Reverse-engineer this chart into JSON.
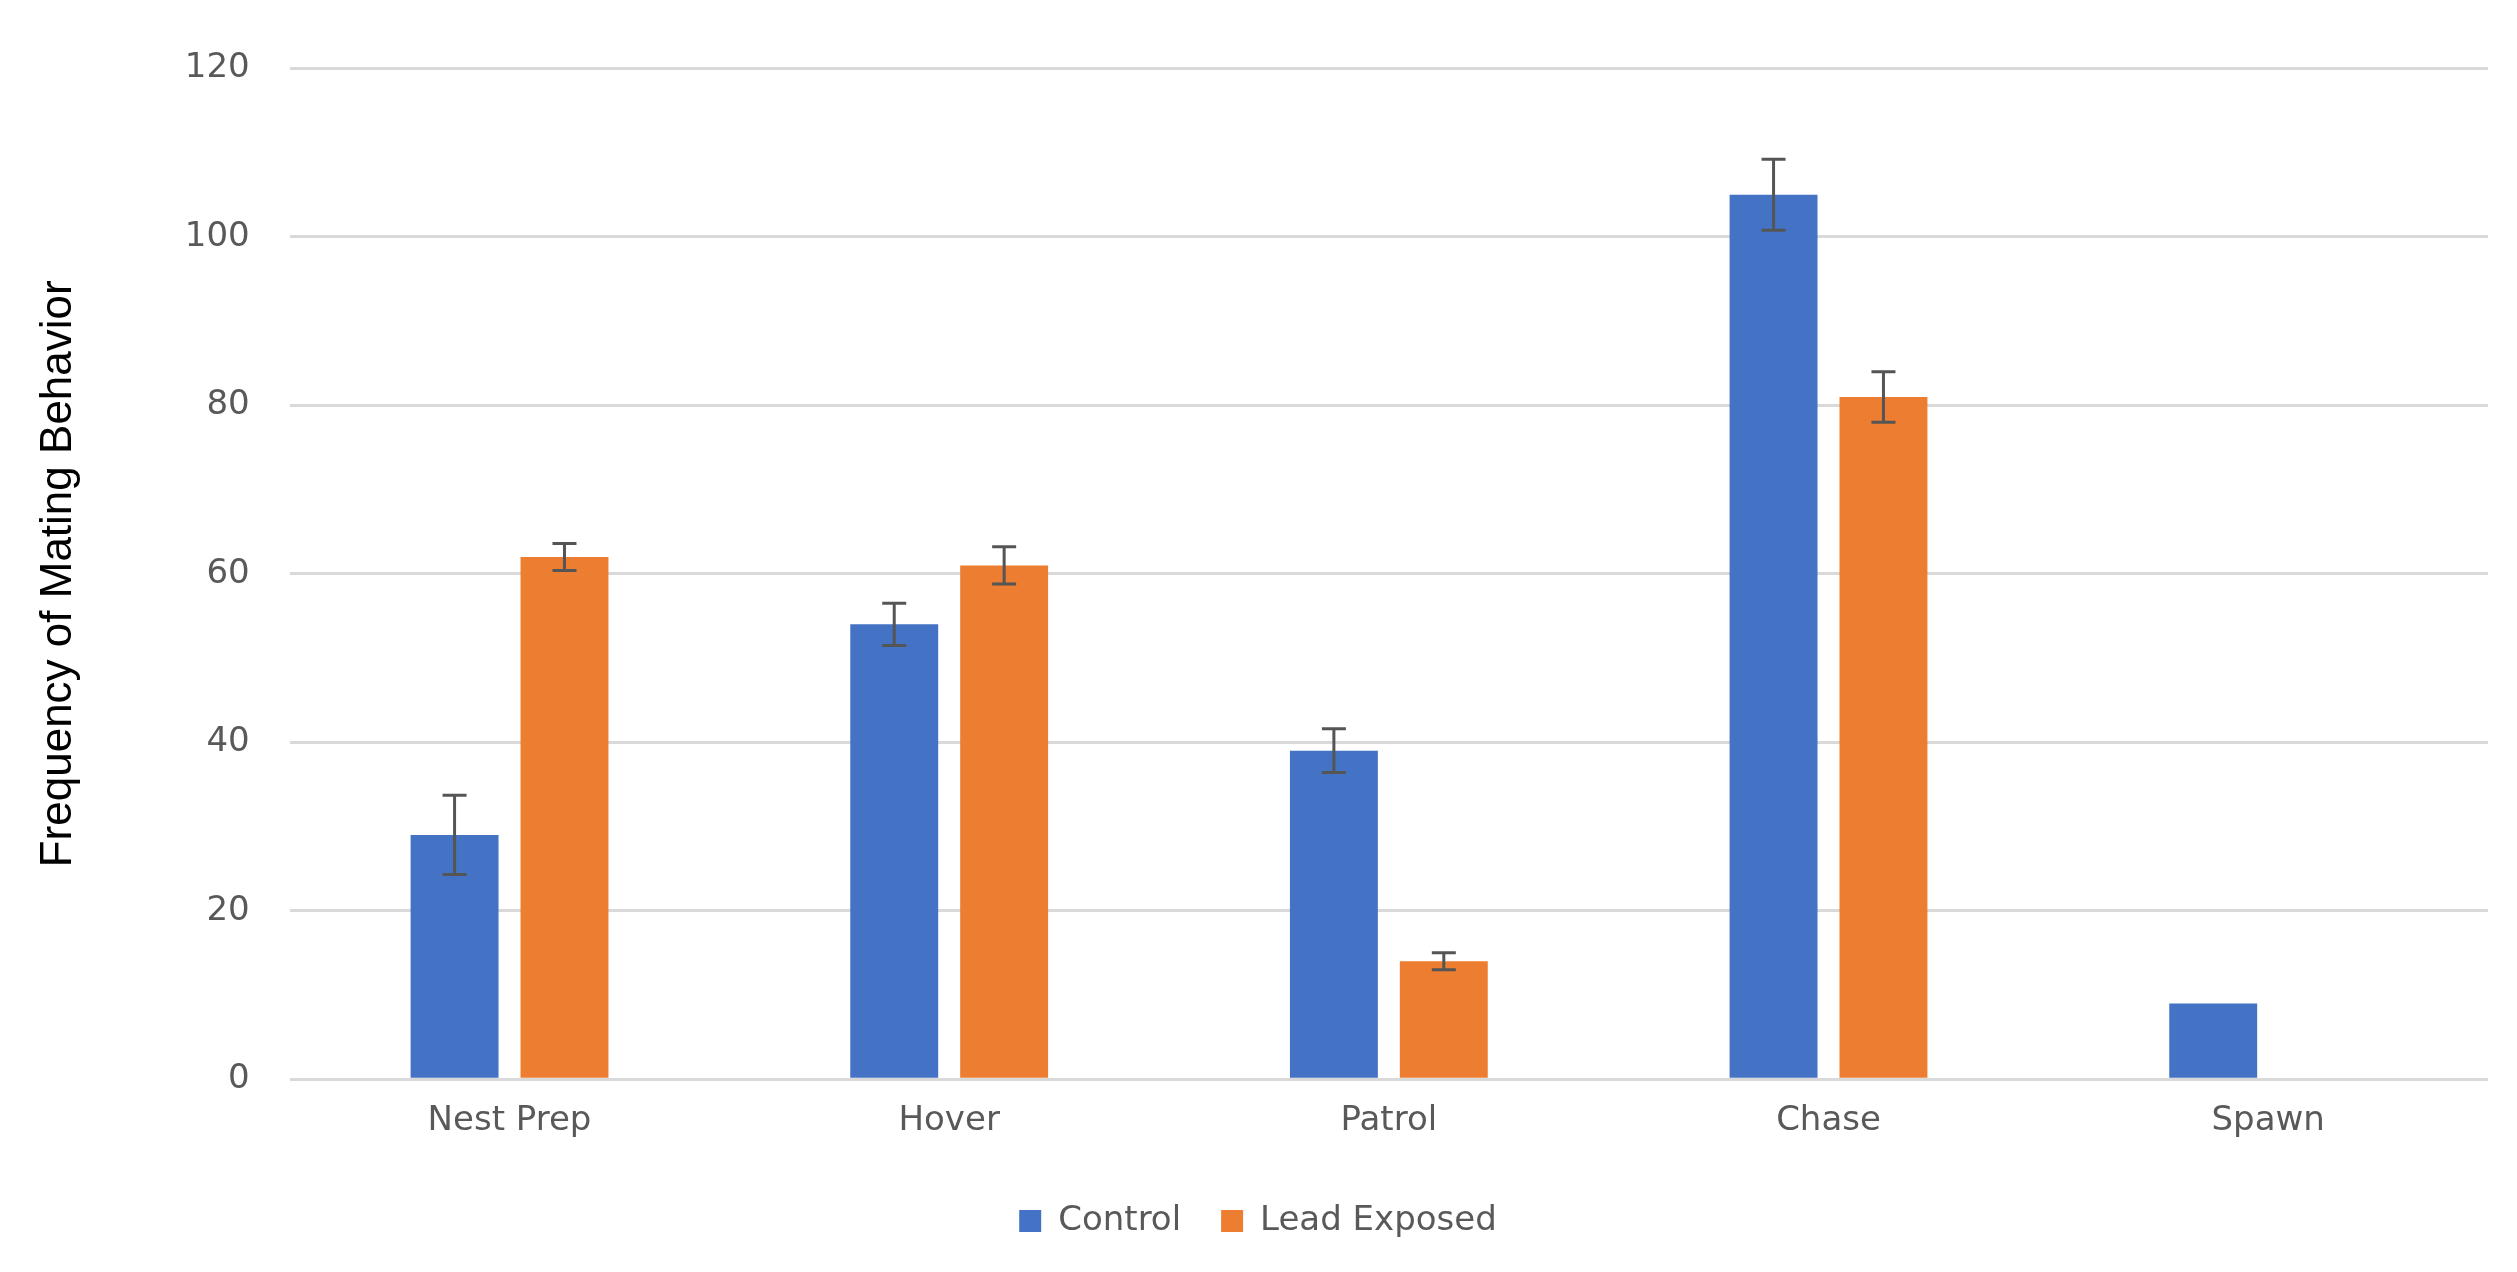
{
  "chart_data": {
    "type": "bar",
    "ylabel": "Frequency of Mating Behavior",
    "categories": [
      "Nest Prep",
      "Hover",
      "Patrol",
      "Chase",
      "Spawn"
    ],
    "series": [
      {
        "name": "Control",
        "color": "#4472c4",
        "values": [
          29,
          54,
          39,
          105,
          9
        ],
        "errors": [
          4.7,
          2.5,
          2.6,
          4.2,
          null
        ]
      },
      {
        "name": "Lead Exposed",
        "color": "#ed7d31",
        "values": [
          62,
          61,
          14,
          81,
          null
        ],
        "errors": [
          1.6,
          2.2,
          1,
          3,
          null
        ]
      }
    ],
    "ylim": [
      0,
      120
    ],
    "yticks": [
      0,
      20,
      40,
      60,
      80,
      100,
      120
    ],
    "grid": "y",
    "legend": "bottom"
  }
}
